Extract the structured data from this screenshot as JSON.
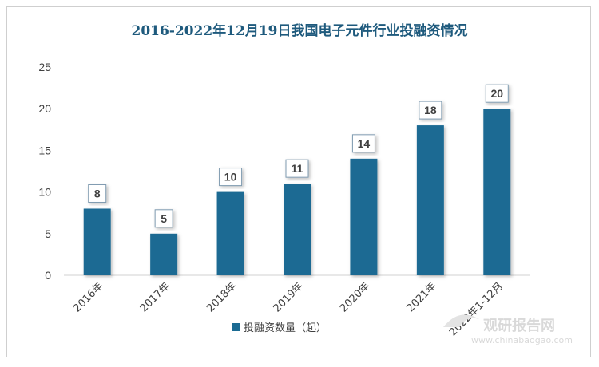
{
  "chart_data": {
    "type": "bar",
    "title": "2016-2022年12月19日我国电子元件行业投融资情况",
    "categories": [
      "2016年",
      "2017年",
      "2018年",
      "2019年",
      "2020年",
      "2021年",
      "2022年1-12月"
    ],
    "series": [
      {
        "name": "投融资数量（起）",
        "values": [
          8,
          5,
          10,
          11,
          14,
          18,
          20
        ]
      }
    ],
    "ylim": [
      0,
      25
    ],
    "yticks": [
      0,
      5,
      10,
      15,
      20,
      25
    ],
    "grid": false,
    "legend_position": "bottom",
    "colors": {
      "bar": "#1b6b93",
      "title": "#1e5a7d"
    }
  },
  "watermark": {
    "name": "观研报告网",
    "url": "www.chinabaogao.com"
  }
}
